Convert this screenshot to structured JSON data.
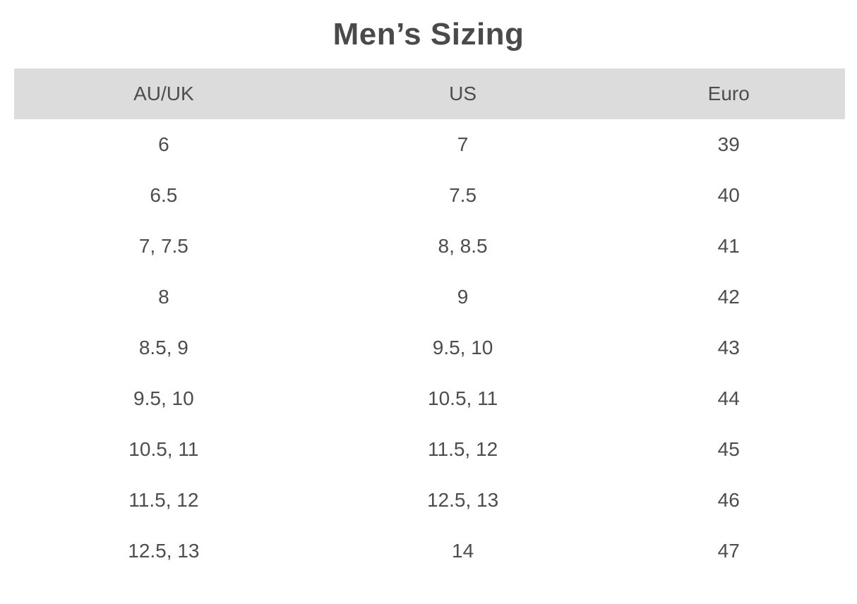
{
  "page": {
    "title": "Men’s Sizing"
  },
  "table": {
    "headers": [
      "AU/UK",
      "US",
      "Euro"
    ],
    "rows": [
      [
        "6",
        "7",
        "39"
      ],
      [
        "6.5",
        "7.5",
        "40"
      ],
      [
        "7, 7.5",
        "8, 8.5",
        "41"
      ],
      [
        "8",
        "9",
        "42"
      ],
      [
        "8.5, 9",
        "9.5, 10",
        "43"
      ],
      [
        "9.5, 10",
        "10.5, 11",
        "44"
      ],
      [
        "10.5, 11",
        "11.5, 12",
        "45"
      ],
      [
        "11.5, 12",
        "12.5, 13",
        "46"
      ],
      [
        "12.5, 13",
        "14",
        "47"
      ]
    ]
  },
  "colors": {
    "background": "#ffffff",
    "header_bg": "#dcdcdc",
    "text": "#4d4d4d",
    "title": "#4a4a4a"
  }
}
